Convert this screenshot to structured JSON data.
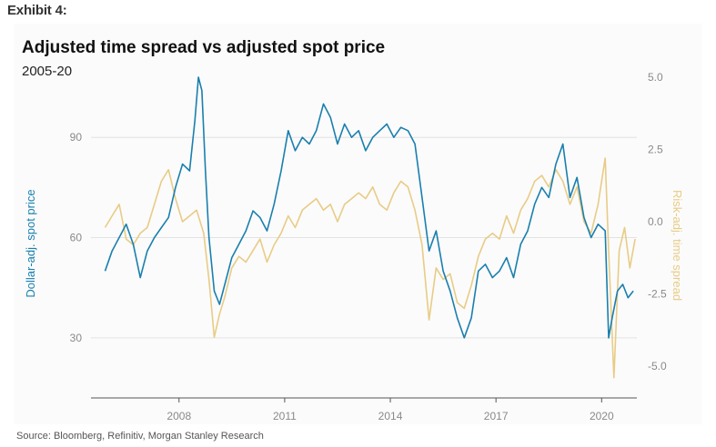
{
  "header": {
    "exhibit": "Exhibit 4:"
  },
  "chart_data": {
    "type": "line",
    "title": "Adjusted time spread vs adjusted spot price",
    "subtitle": "2005-20",
    "source": "Source: Bloomberg, Refinitiv, Morgan Stanley Research",
    "x_ticks": [
      "2008",
      "2011",
      "2014",
      "2017",
      "2020"
    ],
    "xlim": [
      2005.5,
      2021.0
    ],
    "left_axis": {
      "label": "Dollar-adj. spot price",
      "ticks": [
        "30",
        "60",
        "90"
      ],
      "ylim": [
        12,
        108
      ]
    },
    "right_axis": {
      "label": "Risk-adj. time spread",
      "ticks": [
        "5.0",
        "2.5",
        "0.0",
        "-2.5",
        "-5.0"
      ],
      "ylim": [
        -6.1,
        5.0
      ]
    },
    "colors": {
      "spot": "#1a7fae",
      "spread": "#e8cc86",
      "grid": "#e2e2e2",
      "axis": "#555555"
    },
    "series": [
      {
        "name": "Dollar-adj. spot price",
        "axis": "left",
        "x": [
          2005.9,
          2006.1,
          2006.3,
          2006.5,
          2006.7,
          2006.9,
          2007.1,
          2007.3,
          2007.5,
          2007.7,
          2007.9,
          2008.1,
          2008.3,
          2008.45,
          2008.55,
          2008.65,
          2008.75,
          2008.85,
          2009.0,
          2009.15,
          2009.3,
          2009.5,
          2009.7,
          2009.9,
          2010.1,
          2010.3,
          2010.5,
          2010.7,
          2010.9,
          2011.1,
          2011.3,
          2011.5,
          2011.7,
          2011.9,
          2012.1,
          2012.3,
          2012.5,
          2012.7,
          2012.9,
          2013.1,
          2013.3,
          2013.5,
          2013.7,
          2013.9,
          2014.1,
          2014.3,
          2014.5,
          2014.7,
          2014.9,
          2015.1,
          2015.3,
          2015.5,
          2015.7,
          2015.9,
          2016.1,
          2016.3,
          2016.5,
          2016.7,
          2016.9,
          2017.1,
          2017.3,
          2017.5,
          2017.7,
          2017.9,
          2018.1,
          2018.3,
          2018.5,
          2018.7,
          2018.9,
          2019.1,
          2019.3,
          2019.5,
          2019.7,
          2019.9,
          2020.1,
          2020.2,
          2020.3,
          2020.45,
          2020.6,
          2020.75,
          2020.9
        ],
        "values": [
          50,
          56,
          60,
          64,
          58,
          48,
          56,
          60,
          63,
          66,
          75,
          82,
          80,
          95,
          108,
          104,
          80,
          60,
          44,
          40,
          46,
          54,
          58,
          62,
          68,
          66,
          62,
          70,
          80,
          92,
          86,
          90,
          88,
          92,
          100,
          96,
          88,
          94,
          90,
          92,
          86,
          90,
          92,
          94,
          90,
          93,
          92,
          88,
          72,
          56,
          62,
          50,
          44,
          36,
          30,
          36,
          50,
          52,
          48,
          50,
          54,
          48,
          58,
          62,
          70,
          75,
          72,
          82,
          88,
          72,
          78,
          66,
          60,
          64,
          62,
          30,
          36,
          44,
          46,
          42,
          44
        ]
      },
      {
        "name": "Risk-adj. time spread",
        "axis": "right",
        "x": [
          2005.9,
          2006.1,
          2006.3,
          2006.5,
          2006.7,
          2006.9,
          2007.1,
          2007.3,
          2007.5,
          2007.7,
          2007.9,
          2008.1,
          2008.3,
          2008.5,
          2008.7,
          2008.85,
          2009.0,
          2009.15,
          2009.3,
          2009.5,
          2009.7,
          2009.9,
          2010.1,
          2010.3,
          2010.5,
          2010.7,
          2010.9,
          2011.1,
          2011.3,
          2011.5,
          2011.7,
          2011.9,
          2012.1,
          2012.3,
          2012.5,
          2012.7,
          2012.9,
          2013.1,
          2013.3,
          2013.5,
          2013.7,
          2013.9,
          2014.1,
          2014.3,
          2014.5,
          2014.7,
          2014.9,
          2015.1,
          2015.3,
          2015.5,
          2015.7,
          2015.9,
          2016.1,
          2016.3,
          2016.5,
          2016.7,
          2016.9,
          2017.1,
          2017.3,
          2017.5,
          2017.7,
          2017.9,
          2018.1,
          2018.3,
          2018.5,
          2018.7,
          2018.9,
          2019.1,
          2019.3,
          2019.5,
          2019.7,
          2019.9,
          2020.1,
          2020.2,
          2020.35,
          2020.5,
          2020.65,
          2020.8,
          2020.95
        ],
        "values": [
          -0.2,
          0.2,
          0.6,
          -0.6,
          -0.8,
          -0.4,
          -0.2,
          0.6,
          1.4,
          1.8,
          0.8,
          0.0,
          0.2,
          0.4,
          -0.4,
          -2.0,
          -4.0,
          -3.2,
          -2.6,
          -1.6,
          -1.2,
          -1.4,
          -1.0,
          -0.6,
          -1.4,
          -0.8,
          -0.4,
          0.2,
          -0.2,
          0.4,
          0.6,
          0.8,
          0.4,
          0.6,
          0.0,
          0.6,
          0.8,
          1.0,
          0.8,
          1.2,
          0.6,
          0.4,
          1.0,
          1.4,
          1.2,
          0.4,
          -0.8,
          -3.4,
          -1.6,
          -2.0,
          -1.8,
          -2.8,
          -3.0,
          -2.2,
          -1.2,
          -0.6,
          -0.4,
          -0.6,
          0.2,
          -0.4,
          0.4,
          0.8,
          1.4,
          1.6,
          1.2,
          1.8,
          1.4,
          0.6,
          1.2,
          0.0,
          -0.4,
          0.6,
          2.2,
          -1.0,
          -5.4,
          -1.0,
          -0.2,
          -1.6,
          -0.6
        ]
      }
    ]
  }
}
